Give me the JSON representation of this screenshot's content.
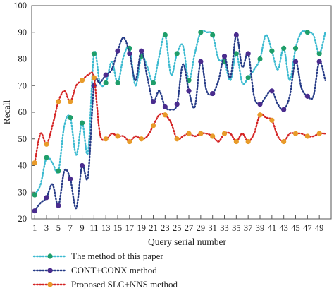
{
  "chart_data": {
    "type": "line",
    "xlabel": "Query serial number",
    "ylabel": "Recall",
    "xlim": [
      0.5,
      51
    ],
    "ylim": [
      20,
      100
    ],
    "x_ticks": [
      1,
      3,
      5,
      7,
      9,
      11,
      13,
      15,
      17,
      19,
      21,
      23,
      25,
      27,
      29,
      31,
      33,
      35,
      37,
      39,
      41,
      43,
      45,
      47,
      49
    ],
    "y_ticks": [
      20,
      30,
      40,
      50,
      60,
      70,
      80,
      90,
      100
    ],
    "grid": false,
    "legend_position": "bottom-left",
    "x": [
      1,
      2,
      3,
      4,
      5,
      6,
      7,
      8,
      9,
      10,
      11,
      12,
      13,
      14,
      15,
      16,
      17,
      18,
      19,
      20,
      21,
      22,
      23,
      24,
      25,
      26,
      27,
      28,
      29,
      30,
      31,
      32,
      33,
      34,
      35,
      36,
      37,
      38,
      39,
      40,
      41,
      42,
      43,
      44,
      45,
      46,
      47,
      48,
      49,
      50
    ],
    "series": [
      {
        "name": "The method of this paper",
        "color": "#3bbad0",
        "marker_color": "#1f9e6a",
        "values": [
          29,
          33,
          43,
          41,
          38,
          55,
          58,
          44,
          56,
          45,
          82,
          71,
          71,
          79,
          71,
          81,
          84,
          70,
          81,
          77,
          71,
          81,
          89,
          74,
          82,
          85,
          72,
          82,
          90,
          90,
          89,
          80,
          79,
          72,
          82,
          71,
          73,
          76,
          80,
          89,
          83,
          76,
          84,
          72,
          84,
          90,
          90,
          89,
          82,
          90
        ]
      },
      {
        "name": "CONT+CONX method",
        "color": "#253a86",
        "marker_color": "#4a2c8e",
        "values": [
          23,
          26,
          28,
          33,
          25,
          38,
          35,
          24,
          40,
          36,
          70,
          71,
          74,
          76,
          83,
          88,
          82,
          72,
          83,
          73,
          64,
          68,
          62,
          61,
          63,
          78,
          68,
          62,
          79,
          68,
          67,
          72,
          81,
          73,
          89,
          77,
          82,
          66,
          63,
          66,
          68,
          63,
          61,
          66,
          79,
          69,
          66,
          66,
          79,
          72
        ]
      },
      {
        "name": "Proposed SLC+NNS method",
        "color": "#d42323",
        "marker_color": "#e89b2a",
        "values": [
          41,
          52,
          48,
          55,
          64,
          68,
          64,
          70,
          72,
          74,
          73,
          52,
          50,
          52,
          51,
          51,
          49,
          51,
          50,
          51,
          55,
          59,
          59,
          56,
          50,
          51,
          52,
          51,
          52,
          52,
          51,
          49,
          52,
          52,
          49,
          52,
          49,
          52,
          59,
          58,
          57,
          51,
          49,
          52,
          52,
          52,
          51,
          51,
          52,
          52
        ]
      }
    ]
  }
}
